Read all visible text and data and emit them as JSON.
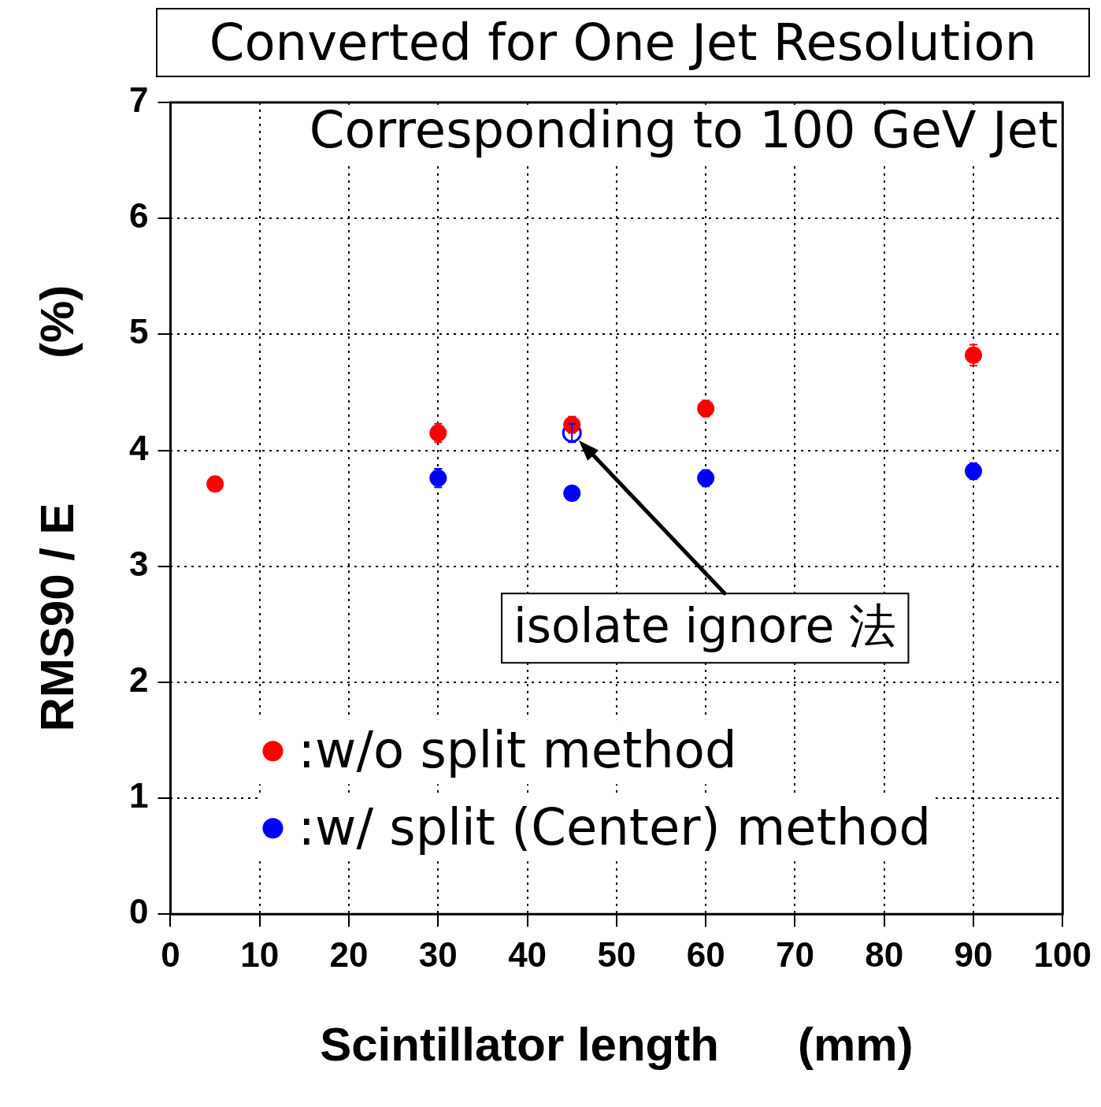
{
  "chart_data": {
    "type": "scatter",
    "title": "Converted for One Jet Resolution",
    "subtitle": "Corresponding to 100 GeV Jet",
    "xlabel": "Scintillator length      (mm)",
    "ylabel": "RMS90 / E           (%)",
    "annotations": [
      "isolate ignore 法"
    ],
    "series": [
      {
        "name": ":w/o split method",
        "color": "#ff0000",
        "x": [
          5,
          30,
          45,
          60,
          90
        ],
        "values": [
          3.71,
          4.15,
          4.22,
          4.36,
          4.82
        ],
        "errors": [
          0.06,
          0.08,
          0.07,
          0.07,
          0.09
        ]
      },
      {
        "name": ":w/ split (Center) method",
        "color": "#0000ff",
        "x": [
          30,
          45,
          60,
          90
        ],
        "values": [
          3.76,
          3.63,
          3.76,
          3.82
        ],
        "errors": [
          0.08,
          0.06,
          0.07,
          0.07
        ]
      },
      {
        "color": "#0000ff",
        "x": [
          45
        ],
        "values": [
          4.15
        ],
        "errors": [
          0.08
        ]
      }
    ],
    "xlim": [
      0,
      100
    ],
    "xticks": [
      0,
      10,
      20,
      30,
      40,
      50,
      60,
      70,
      80,
      90,
      100
    ],
    "ylim": [
      0,
      7
    ],
    "yticks": [
      0,
      1,
      2,
      3,
      4,
      5,
      6,
      7
    ],
    "grid": true,
    "legend": "bottom left",
    "marker": "circle"
  }
}
